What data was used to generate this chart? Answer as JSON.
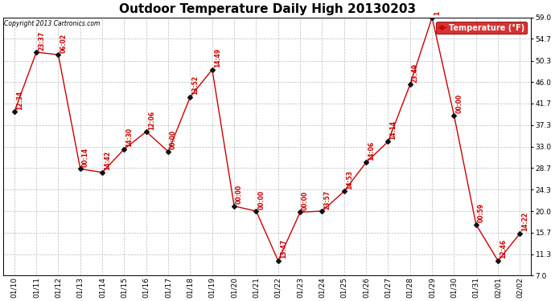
{
  "title": "Outdoor Temperature Daily High 20130203",
  "copyright": "Copyright 2013 Cartronics.com",
  "legend_label": "Temperature (°F)",
  "line_color": "#cc0000",
  "marker_color": "#111111",
  "background_color": "#ffffff",
  "grid_color": "#bbbbbb",
  "dates": [
    "01/10",
    "01/11",
    "01/12",
    "01/13",
    "01/14",
    "01/15",
    "01/16",
    "01/17",
    "01/18",
    "01/19",
    "01/20",
    "01/21",
    "01/22",
    "01/23",
    "01/24",
    "01/25",
    "01/26",
    "01/27",
    "01/28",
    "01/29",
    "01/30",
    "01/31",
    "02/01",
    "02/02"
  ],
  "values": [
    40.0,
    52.0,
    51.5,
    28.5,
    27.8,
    32.5,
    36.0,
    32.0,
    43.0,
    48.5,
    21.0,
    20.0,
    10.0,
    19.8,
    20.0,
    24.0,
    29.8,
    34.0,
    45.5,
    59.0,
    39.3,
    17.3,
    10.0,
    15.5
  ],
  "time_labels": [
    "12:34",
    "23:37",
    "06:02",
    "00:14",
    "14:42",
    "14:30",
    "12:06",
    "00:00",
    "13:52",
    "14:49",
    "00:00",
    "00:00",
    "13:47",
    "00:00",
    "23:57",
    "14:53",
    "14:06",
    "14:14",
    "23:49",
    "1",
    "00:00",
    "00:59",
    "12:46",
    "14:22"
  ],
  "ylim": [
    7.0,
    59.0
  ],
  "yticks": [
    7.0,
    11.3,
    15.7,
    20.0,
    24.3,
    28.7,
    33.0,
    37.3,
    41.7,
    46.0,
    50.3,
    54.7,
    59.0
  ],
  "title_fontsize": 11,
  "label_fontsize": 5.5,
  "tick_fontsize": 6.5,
  "copyright_fontsize": 5.5,
  "legend_fontsize": 7
}
